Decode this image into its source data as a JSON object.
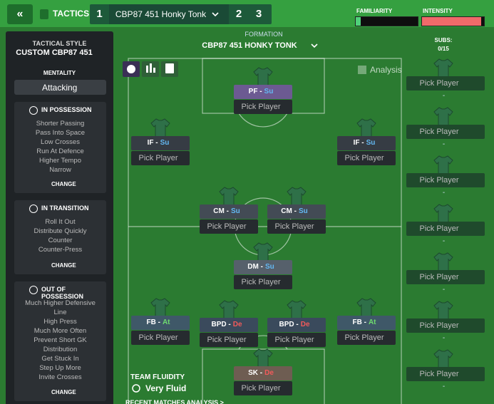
{
  "header": {
    "tab_label": "TACTICS",
    "tabs": [
      "1",
      "CBP87 451 Honky Tonk",
      "2",
      "3"
    ],
    "familiarity": {
      "label": "FAMILIARITY",
      "value": 8
    },
    "intensity": {
      "label": "INTENSITY",
      "value": 95
    }
  },
  "sidebar": {
    "style_label": "TACTICAL STYLE",
    "style": "CUSTOM CBP87 451",
    "mentality_label": "MENTALITY",
    "mentality": "Attacking",
    "sections": [
      {
        "title": "IN POSSESSION",
        "items": [
          "Shorter Passing",
          "Pass Into Space",
          "Low Crosses",
          "Run At Defence",
          "Higher Tempo",
          "Narrow"
        ],
        "action": "CHANGE"
      },
      {
        "title": "IN TRANSITION",
        "items": [
          "Roll It Out",
          "Distribute Quickly",
          "Counter",
          "Counter-Press"
        ],
        "action": "CHANGE"
      },
      {
        "title": "OUT OF POSSESSION",
        "items": [
          "Much Higher Defensive Line",
          "High Press",
          "Much More Often",
          "Prevent Short GK Distribution",
          "Get Stuck In",
          "Step Up More",
          "Invite Crosses"
        ],
        "action": "CHANGE"
      }
    ]
  },
  "formation": {
    "label": "FORMATION",
    "name": "CBP87 451 HONKY TONK",
    "analysis": "Analysis",
    "players": [
      {
        "role": "PF -",
        "duty": "Su",
        "pick": "Pick Player"
      },
      {
        "role": "IF -",
        "duty": "Su",
        "pick": "Pick Player"
      },
      {
        "role": "IF -",
        "duty": "Su",
        "pick": "Pick Player"
      },
      {
        "role": "CM -",
        "duty": "Su",
        "pick": "Pick Player"
      },
      {
        "role": "CM -",
        "duty": "Su",
        "pick": "Pick Player"
      },
      {
        "role": "DM -",
        "duty": "Su",
        "pick": "Pick Player"
      },
      {
        "role": "FB -",
        "duty": "At",
        "pick": "Pick Player"
      },
      {
        "role": "BPD -",
        "duty": "De",
        "pick": "Pick Player"
      },
      {
        "role": "BPD -",
        "duty": "De",
        "pick": "Pick Player"
      },
      {
        "role": "FB -",
        "duty": "At",
        "pick": "Pick Player"
      },
      {
        "role": "SK -",
        "duty": "De",
        "pick": "Pick Player"
      }
    ],
    "fluidity_label": "TEAM FLUIDITY",
    "fluidity": "Very Fluid",
    "recent": "RECENT MATCHES ANALYSIS >"
  },
  "subs": {
    "label": "SUBS:",
    "count": "0/15",
    "slots": [
      {
        "pick": "Pick Player",
        "name": "-"
      },
      {
        "pick": "Pick Player",
        "name": "-"
      },
      {
        "pick": "Pick Player",
        "name": "-"
      },
      {
        "pick": "Pick Player",
        "name": "-"
      },
      {
        "pick": "Pick Player",
        "name": "-"
      },
      {
        "pick": "Pick Player",
        "name": "-"
      },
      {
        "pick": "Pick Player",
        "name": "-"
      }
    ]
  }
}
